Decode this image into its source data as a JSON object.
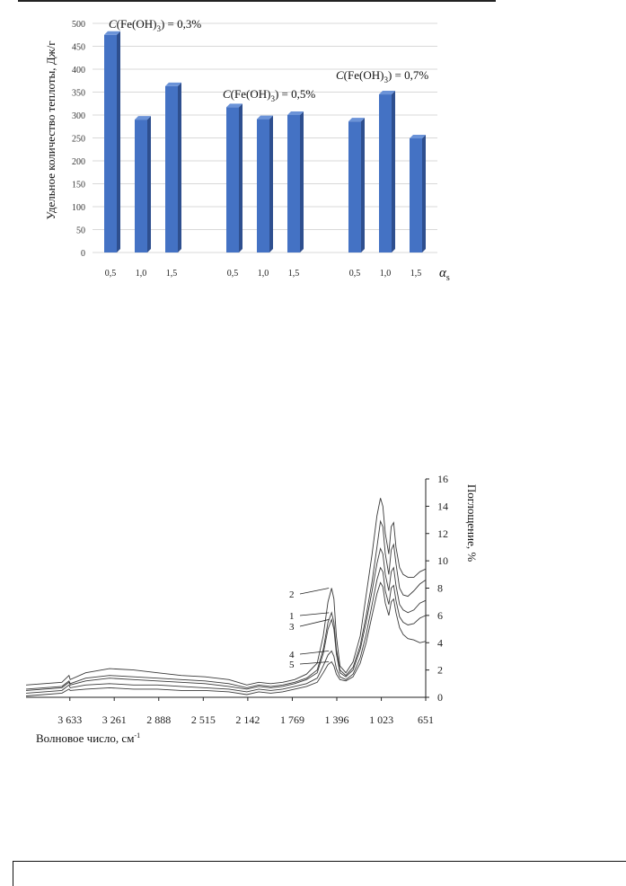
{
  "chart_data": [
    {
      "type": "bar",
      "ylabel": "Удельное количество теплоты, Дж/г",
      "xlabel": "α",
      "xlabel_sub": "s",
      "ylim": [
        0,
        500
      ],
      "y_ticks": [
        0,
        50,
        100,
        150,
        200,
        250,
        300,
        350,
        400,
        450,
        500
      ],
      "grid": true,
      "bar_color": "#4472C4",
      "groups": [
        {
          "label_main": "C(Fe(OH)",
          "label_sub": "3",
          "label_tail": ") = 0,3%",
          "categories": [
            "0,5",
            "1,0",
            "1,5"
          ],
          "values": [
            475,
            290,
            363
          ]
        },
        {
          "label_main": "C(Fe(OH)",
          "label_sub": "3",
          "label_tail": ") = 0,5%",
          "categories": [
            "0,5",
            "1,0",
            "1,5"
          ],
          "values": [
            317,
            291,
            300
          ]
        },
        {
          "label_main": "C(Fe(OH)",
          "label_sub": "3",
          "label_tail": ") = 0,7%",
          "categories": [
            "0,5",
            "1,0",
            "1,5"
          ],
          "values": [
            286,
            345,
            249
          ]
        }
      ]
    },
    {
      "type": "line",
      "xlabel": "Волновое число, см",
      "xlabel_sup": "-1",
      "ylabel": "Поглощение, %",
      "xlim": [
        4000,
        651
      ],
      "ylim": [
        0,
        16
      ],
      "x_ticks": [
        "3 633",
        "3 261",
        "2 888",
        "2 515",
        "2 142",
        "1 769",
        "1 396",
        "1 023",
        "651"
      ],
      "x_tick_values": [
        3633,
        3261,
        2888,
        2515,
        2142,
        1769,
        1396,
        1023,
        651
      ],
      "y_ticks": [
        0,
        2,
        4,
        6,
        8,
        10,
        12,
        14,
        16
      ],
      "series": [
        {
          "name": "1",
          "x": [
            4000,
            3700,
            3640,
            3630,
            3500,
            3300,
            3100,
            2900,
            2700,
            2500,
            2300,
            2150,
            2050,
            1950,
            1850,
            1750,
            1650,
            1560,
            1510,
            1470,
            1440,
            1420,
            1400,
            1370,
            1320,
            1260,
            1200,
            1150,
            1100,
            1060,
            1030,
            1010,
            990,
            960,
            940,
            920,
            900,
            870,
            840,
            800,
            750,
            700,
            651
          ],
          "y": [
            0.6,
            0.8,
            1.2,
            1.0,
            1.4,
            1.6,
            1.5,
            1.4,
            1.3,
            1.2,
            1.0,
            0.7,
            0.9,
            0.8,
            0.9,
            1.1,
            1.4,
            2.0,
            3.5,
            5.5,
            6.2,
            5.5,
            3.5,
            2.0,
            1.6,
            2.2,
            3.8,
            6.0,
            8.5,
            11.0,
            12.9,
            12.5,
            10.5,
            9.0,
            10.8,
            11.2,
            9.8,
            8.0,
            7.5,
            7.4,
            7.8,
            8.3,
            8.6
          ]
        },
        {
          "name": "2",
          "x": [
            4000,
            3700,
            3640,
            3630,
            3500,
            3300,
            3100,
            2900,
            2700,
            2500,
            2300,
            2150,
            2050,
            1950,
            1850,
            1750,
            1650,
            1560,
            1510,
            1470,
            1440,
            1420,
            1400,
            1370,
            1320,
            1260,
            1200,
            1150,
            1100,
            1060,
            1030,
            1010,
            990,
            960,
            940,
            920,
            900,
            870,
            840,
            800,
            750,
            700,
            651
          ],
          "y": [
            0.9,
            1.1,
            1.6,
            1.3,
            1.8,
            2.1,
            2.0,
            1.8,
            1.6,
            1.5,
            1.3,
            0.9,
            1.1,
            1.0,
            1.1,
            1.3,
            1.7,
            2.5,
            4.5,
            7.0,
            8.0,
            7.2,
            4.5,
            2.3,
            1.8,
            2.6,
            4.5,
            7.5,
            10.5,
            13.3,
            14.6,
            14.0,
            12.0,
            10.5,
            12.5,
            12.8,
            11.0,
            9.5,
            9.0,
            8.8,
            8.8,
            9.2,
            9.4
          ]
        },
        {
          "name": "3",
          "x": [
            4000,
            3700,
            3640,
            3630,
            3500,
            3300,
            3100,
            2900,
            2700,
            2500,
            2300,
            2150,
            2050,
            1950,
            1850,
            1750,
            1650,
            1560,
            1510,
            1470,
            1440,
            1420,
            1400,
            1370,
            1320,
            1260,
            1200,
            1150,
            1100,
            1060,
            1030,
            1010,
            990,
            960,
            940,
            920,
            900,
            870,
            840,
            800,
            750,
            700,
            651
          ],
          "y": [
            0.5,
            0.7,
            1.1,
            0.9,
            1.2,
            1.4,
            1.3,
            1.2,
            1.1,
            1.0,
            0.8,
            0.6,
            0.8,
            0.7,
            0.8,
            1.0,
            1.3,
            1.8,
            3.2,
            5.0,
            5.7,
            5.0,
            3.2,
            1.8,
            1.5,
            2.0,
            3.5,
            5.5,
            7.8,
            9.8,
            10.9,
            10.5,
            9.0,
            7.8,
            9.2,
            9.5,
            8.2,
            6.8,
            6.4,
            6.2,
            6.4,
            6.9,
            7.1
          ]
        },
        {
          "name": "4",
          "x": [
            4000,
            3700,
            3640,
            3630,
            3500,
            3300,
            3100,
            2900,
            2700,
            2500,
            2300,
            2150,
            2050,
            1950,
            1850,
            1750,
            1650,
            1560,
            1510,
            1470,
            1440,
            1420,
            1400,
            1370,
            1320,
            1260,
            1200,
            1150,
            1100,
            1060,
            1030,
            1010,
            990,
            960,
            940,
            920,
            900,
            870,
            840,
            800,
            750,
            700,
            651
          ],
          "y": [
            0.3,
            0.5,
            0.9,
            0.7,
            0.9,
            1.0,
            0.9,
            0.9,
            0.8,
            0.7,
            0.6,
            0.4,
            0.6,
            0.5,
            0.6,
            0.8,
            1.0,
            1.4,
            2.3,
            3.1,
            3.4,
            3.0,
            2.1,
            1.5,
            1.3,
            1.7,
            2.9,
            4.6,
            6.8,
            8.6,
            9.5,
            9.2,
            7.8,
            6.8,
            8.0,
            8.2,
            7.1,
            5.9,
            5.5,
            5.3,
            5.4,
            5.8,
            6.0
          ]
        },
        {
          "name": "5",
          "x": [
            4000,
            3700,
            3640,
            3630,
            3500,
            3300,
            3100,
            2900,
            2700,
            2500,
            2300,
            2150,
            2050,
            1950,
            1850,
            1750,
            1650,
            1560,
            1510,
            1470,
            1440,
            1420,
            1400,
            1370,
            1320,
            1260,
            1200,
            1150,
            1100,
            1060,
            1030,
            1010,
            990,
            960,
            940,
            920,
            900,
            870,
            840,
            800,
            750,
            700,
            651
          ],
          "y": [
            0.1,
            0.3,
            0.6,
            0.5,
            0.6,
            0.7,
            0.6,
            0.6,
            0.5,
            0.5,
            0.4,
            0.2,
            0.4,
            0.3,
            0.4,
            0.6,
            0.8,
            1.1,
            1.8,
            2.4,
            2.6,
            2.3,
            1.7,
            1.3,
            1.2,
            1.5,
            2.5,
            4.0,
            6.0,
            7.6,
            8.4,
            8.1,
            6.9,
            6.0,
            7.0,
            7.2,
            6.2,
            5.1,
            4.6,
            4.3,
            4.2,
            4.0,
            4.1
          ]
        }
      ]
    }
  ]
}
